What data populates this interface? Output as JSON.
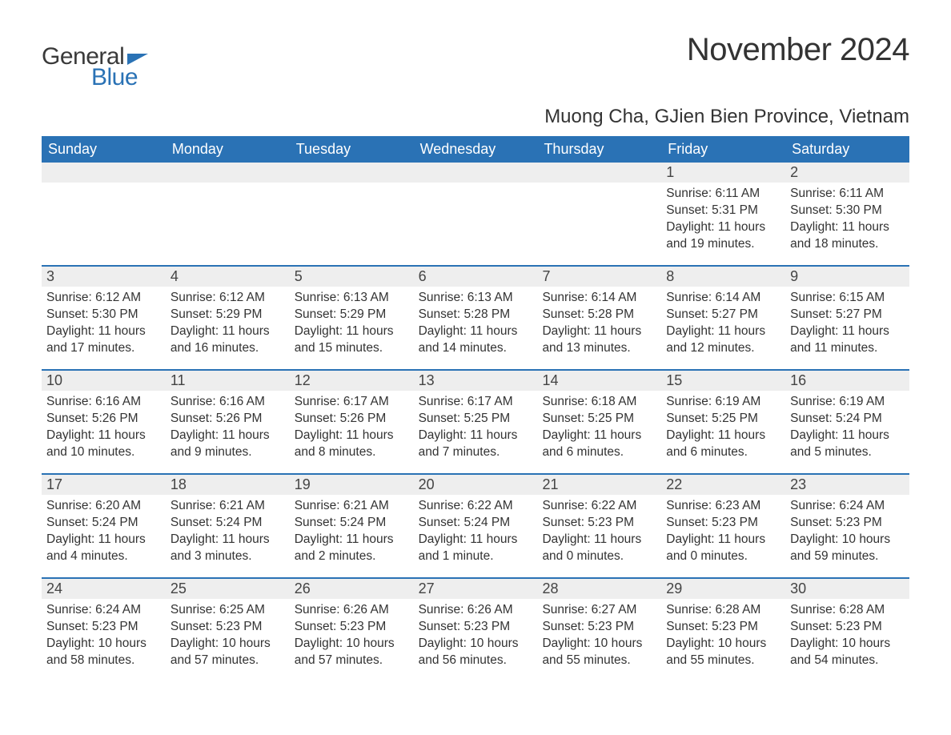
{
  "logo": {
    "text_general": "General",
    "text_blue": "Blue"
  },
  "header": {
    "month_title": "November 2024",
    "location": "Muong Cha, GJien Bien Province, Vietnam"
  },
  "colors": {
    "header_bar": "#2a72b5",
    "header_text": "#ffffff",
    "daynum_bg": "#eeeeee",
    "body_text": "#333333",
    "week_divider": "#2a72b5",
    "background": "#ffffff",
    "logo_blue": "#2a72b5",
    "logo_gray": "#3a3a3a"
  },
  "typography": {
    "title_fontsize": 40,
    "location_fontsize": 24,
    "weekday_fontsize": 18,
    "daynum_fontsize": 18,
    "body_fontsize": 15.5,
    "logo_fontsize": 30
  },
  "layout": {
    "type": "calendar-month",
    "columns": 7,
    "rows": 5,
    "first_weekday": "Sunday"
  },
  "weekdays": [
    "Sunday",
    "Monday",
    "Tuesday",
    "Wednesday",
    "Thursday",
    "Friday",
    "Saturday"
  ],
  "weeks": [
    [
      {
        "day": "",
        "sunrise": "",
        "sunset": "",
        "daylight": ""
      },
      {
        "day": "",
        "sunrise": "",
        "sunset": "",
        "daylight": ""
      },
      {
        "day": "",
        "sunrise": "",
        "sunset": "",
        "daylight": ""
      },
      {
        "day": "",
        "sunrise": "",
        "sunset": "",
        "daylight": ""
      },
      {
        "day": "",
        "sunrise": "",
        "sunset": "",
        "daylight": ""
      },
      {
        "day": "1",
        "sunrise": "Sunrise: 6:11 AM",
        "sunset": "Sunset: 5:31 PM",
        "daylight": "Daylight: 11 hours and 19 minutes."
      },
      {
        "day": "2",
        "sunrise": "Sunrise: 6:11 AM",
        "sunset": "Sunset: 5:30 PM",
        "daylight": "Daylight: 11 hours and 18 minutes."
      }
    ],
    [
      {
        "day": "3",
        "sunrise": "Sunrise: 6:12 AM",
        "sunset": "Sunset: 5:30 PM",
        "daylight": "Daylight: 11 hours and 17 minutes."
      },
      {
        "day": "4",
        "sunrise": "Sunrise: 6:12 AM",
        "sunset": "Sunset: 5:29 PM",
        "daylight": "Daylight: 11 hours and 16 minutes."
      },
      {
        "day": "5",
        "sunrise": "Sunrise: 6:13 AM",
        "sunset": "Sunset: 5:29 PM",
        "daylight": "Daylight: 11 hours and 15 minutes."
      },
      {
        "day": "6",
        "sunrise": "Sunrise: 6:13 AM",
        "sunset": "Sunset: 5:28 PM",
        "daylight": "Daylight: 11 hours and 14 minutes."
      },
      {
        "day": "7",
        "sunrise": "Sunrise: 6:14 AM",
        "sunset": "Sunset: 5:28 PM",
        "daylight": "Daylight: 11 hours and 13 minutes."
      },
      {
        "day": "8",
        "sunrise": "Sunrise: 6:14 AM",
        "sunset": "Sunset: 5:27 PM",
        "daylight": "Daylight: 11 hours and 12 minutes."
      },
      {
        "day": "9",
        "sunrise": "Sunrise: 6:15 AM",
        "sunset": "Sunset: 5:27 PM",
        "daylight": "Daylight: 11 hours and 11 minutes."
      }
    ],
    [
      {
        "day": "10",
        "sunrise": "Sunrise: 6:16 AM",
        "sunset": "Sunset: 5:26 PM",
        "daylight": "Daylight: 11 hours and 10 minutes."
      },
      {
        "day": "11",
        "sunrise": "Sunrise: 6:16 AM",
        "sunset": "Sunset: 5:26 PM",
        "daylight": "Daylight: 11 hours and 9 minutes."
      },
      {
        "day": "12",
        "sunrise": "Sunrise: 6:17 AM",
        "sunset": "Sunset: 5:26 PM",
        "daylight": "Daylight: 11 hours and 8 minutes."
      },
      {
        "day": "13",
        "sunrise": "Sunrise: 6:17 AM",
        "sunset": "Sunset: 5:25 PM",
        "daylight": "Daylight: 11 hours and 7 minutes."
      },
      {
        "day": "14",
        "sunrise": "Sunrise: 6:18 AM",
        "sunset": "Sunset: 5:25 PM",
        "daylight": "Daylight: 11 hours and 6 minutes."
      },
      {
        "day": "15",
        "sunrise": "Sunrise: 6:19 AM",
        "sunset": "Sunset: 5:25 PM",
        "daylight": "Daylight: 11 hours and 6 minutes."
      },
      {
        "day": "16",
        "sunrise": "Sunrise: 6:19 AM",
        "sunset": "Sunset: 5:24 PM",
        "daylight": "Daylight: 11 hours and 5 minutes."
      }
    ],
    [
      {
        "day": "17",
        "sunrise": "Sunrise: 6:20 AM",
        "sunset": "Sunset: 5:24 PM",
        "daylight": "Daylight: 11 hours and 4 minutes."
      },
      {
        "day": "18",
        "sunrise": "Sunrise: 6:21 AM",
        "sunset": "Sunset: 5:24 PM",
        "daylight": "Daylight: 11 hours and 3 minutes."
      },
      {
        "day": "19",
        "sunrise": "Sunrise: 6:21 AM",
        "sunset": "Sunset: 5:24 PM",
        "daylight": "Daylight: 11 hours and 2 minutes."
      },
      {
        "day": "20",
        "sunrise": "Sunrise: 6:22 AM",
        "sunset": "Sunset: 5:24 PM",
        "daylight": "Daylight: 11 hours and 1 minute."
      },
      {
        "day": "21",
        "sunrise": "Sunrise: 6:22 AM",
        "sunset": "Sunset: 5:23 PM",
        "daylight": "Daylight: 11 hours and 0 minutes."
      },
      {
        "day": "22",
        "sunrise": "Sunrise: 6:23 AM",
        "sunset": "Sunset: 5:23 PM",
        "daylight": "Daylight: 11 hours and 0 minutes."
      },
      {
        "day": "23",
        "sunrise": "Sunrise: 6:24 AM",
        "sunset": "Sunset: 5:23 PM",
        "daylight": "Daylight: 10 hours and 59 minutes."
      }
    ],
    [
      {
        "day": "24",
        "sunrise": "Sunrise: 6:24 AM",
        "sunset": "Sunset: 5:23 PM",
        "daylight": "Daylight: 10 hours and 58 minutes."
      },
      {
        "day": "25",
        "sunrise": "Sunrise: 6:25 AM",
        "sunset": "Sunset: 5:23 PM",
        "daylight": "Daylight: 10 hours and 57 minutes."
      },
      {
        "day": "26",
        "sunrise": "Sunrise: 6:26 AM",
        "sunset": "Sunset: 5:23 PM",
        "daylight": "Daylight: 10 hours and 57 minutes."
      },
      {
        "day": "27",
        "sunrise": "Sunrise: 6:26 AM",
        "sunset": "Sunset: 5:23 PM",
        "daylight": "Daylight: 10 hours and 56 minutes."
      },
      {
        "day": "28",
        "sunrise": "Sunrise: 6:27 AM",
        "sunset": "Sunset: 5:23 PM",
        "daylight": "Daylight: 10 hours and 55 minutes."
      },
      {
        "day": "29",
        "sunrise": "Sunrise: 6:28 AM",
        "sunset": "Sunset: 5:23 PM",
        "daylight": "Daylight: 10 hours and 55 minutes."
      },
      {
        "day": "30",
        "sunrise": "Sunrise: 6:28 AM",
        "sunset": "Sunset: 5:23 PM",
        "daylight": "Daylight: 10 hours and 54 minutes."
      }
    ]
  ]
}
